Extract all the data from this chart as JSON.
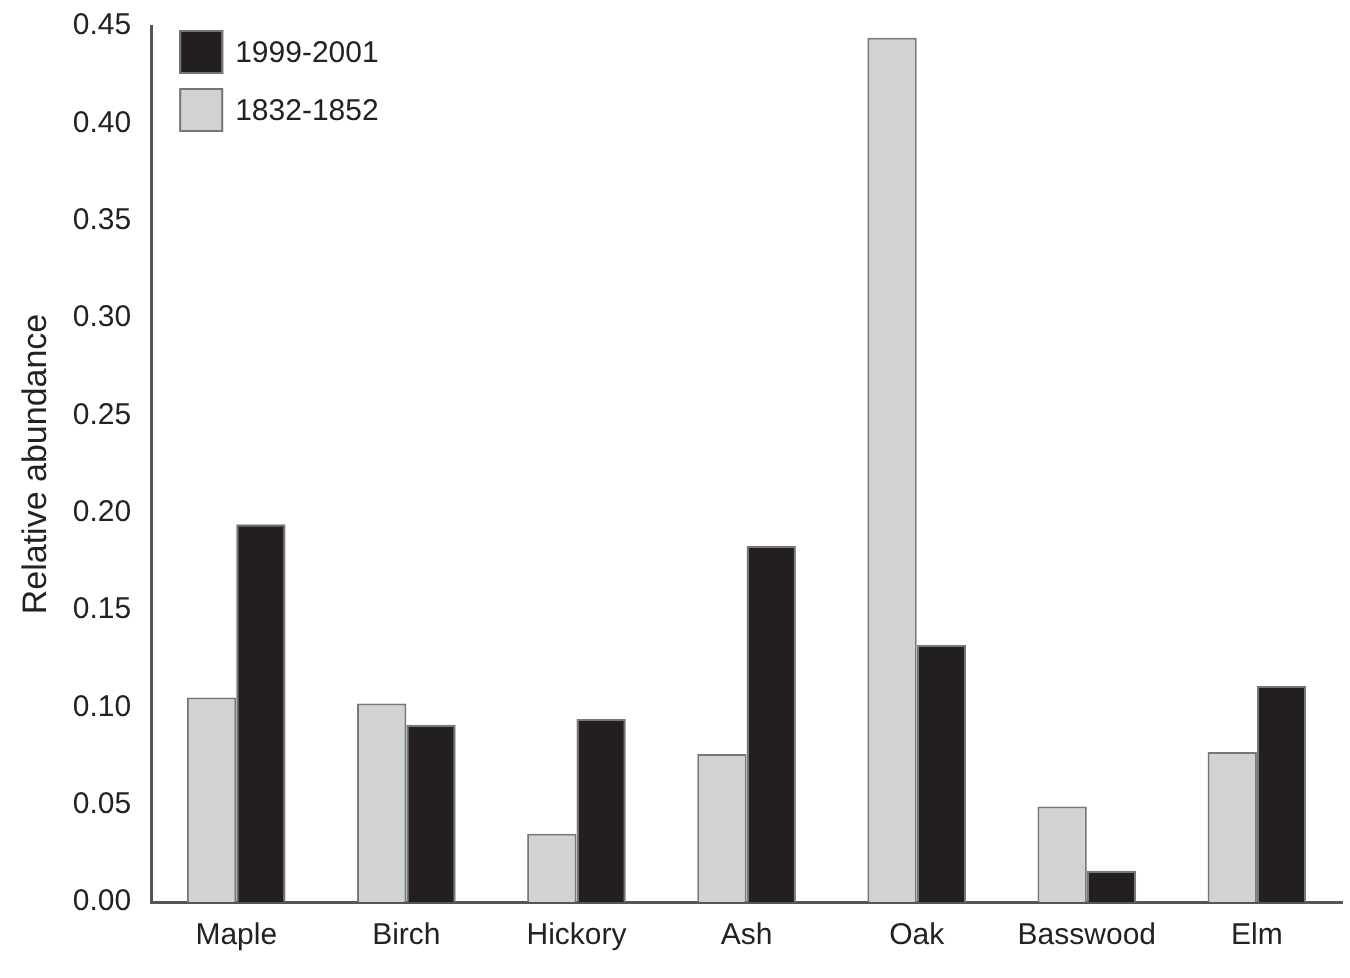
{
  "chart_data": {
    "type": "bar",
    "ylabel": "Relative abundance",
    "categories": [
      "Maple",
      "Birch",
      "Hickory",
      "Ash",
      "Oak",
      "Basswood",
      "Elm"
    ],
    "series": [
      {
        "name": "1832-1852",
        "color": "#d1d2d4",
        "values": [
          0.105,
          0.102,
          0.035,
          0.076,
          0.444,
          0.049,
          0.077
        ]
      },
      {
        "name": "1999-2001",
        "color": "#231f20",
        "values": [
          0.194,
          0.091,
          0.094,
          0.183,
          0.132,
          0.016,
          0.111
        ]
      }
    ],
    "ylim": [
      0,
      0.45
    ],
    "yticks": [
      {
        "value": 0,
        "label": "0.00"
      },
      {
        "value": 0.05,
        "label": "0.05"
      },
      {
        "value": 0.1,
        "label": "0.10"
      },
      {
        "value": 0.15,
        "label": "0.15"
      },
      {
        "value": 0.2,
        "label": "0.20"
      },
      {
        "value": 0.25,
        "label": "0.25"
      },
      {
        "value": 0.3,
        "label": "0.30"
      },
      {
        "value": 0.35,
        "label": "0.35"
      },
      {
        "value": 0.4,
        "label": "0.40"
      },
      {
        "value": 0.45,
        "label": "0.45"
      }
    ],
    "grid": false,
    "legend": "top left"
  }
}
